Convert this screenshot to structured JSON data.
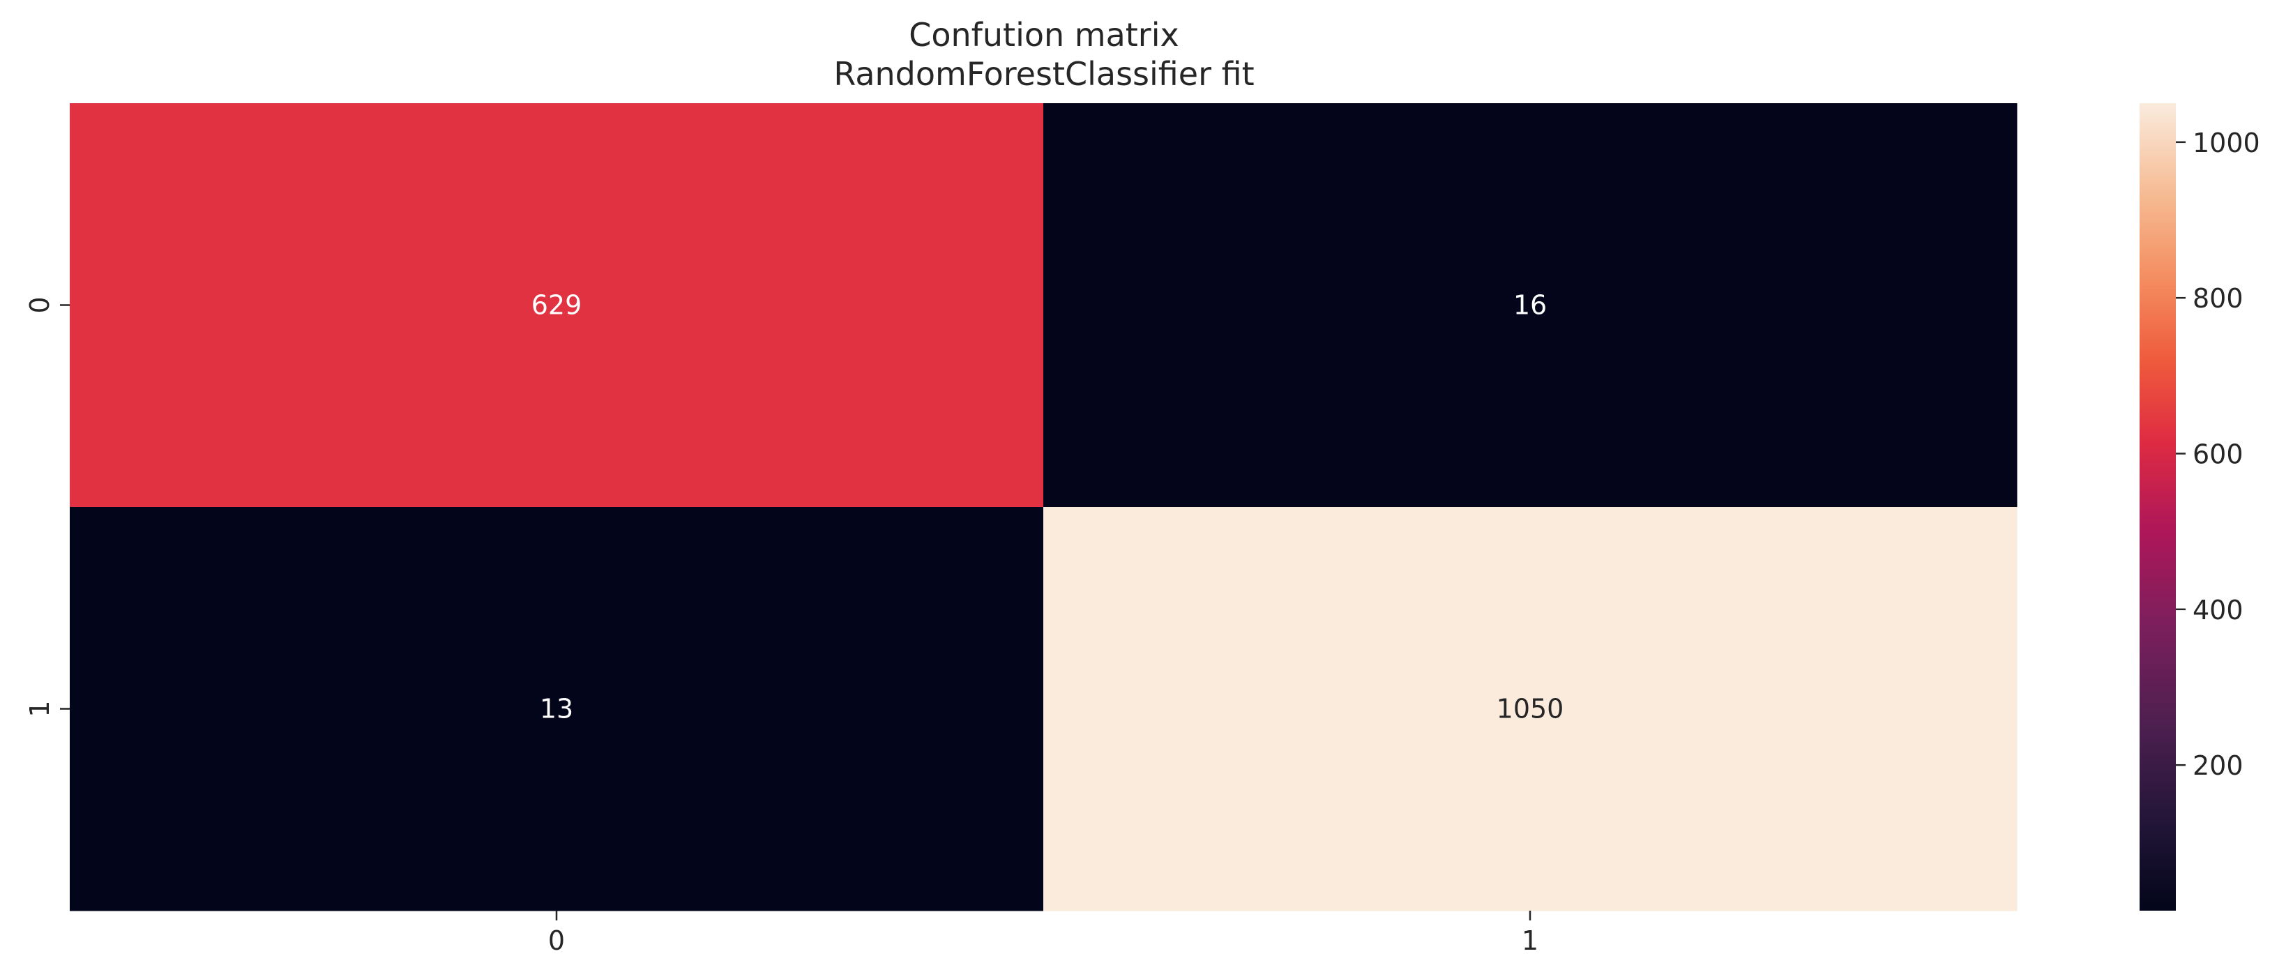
{
  "chart_data": {
    "type": "heatmap",
    "title": "Confution matrix",
    "subtitle": "RandomForestClassifier fit",
    "xlabel": "",
    "ylabel": "",
    "x_categories": [
      "0",
      "1"
    ],
    "y_categories": [
      "0",
      "1"
    ],
    "values": [
      [
        629,
        16
      ],
      [
        13,
        1050
      ]
    ],
    "colorbar": {
      "vmin": 13,
      "vmax": 1050,
      "ticks": [
        200,
        400,
        600,
        800,
        1000
      ]
    },
    "colormap": "rocket",
    "grid": false
  }
}
